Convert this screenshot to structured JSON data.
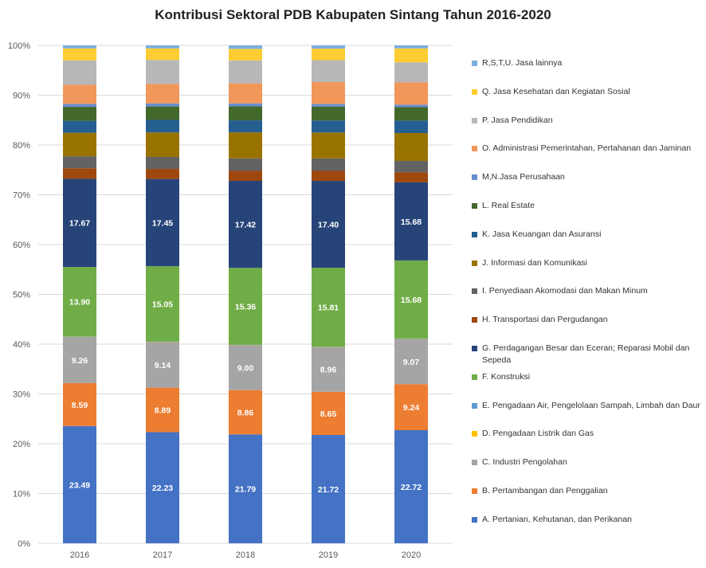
{
  "chart_data": {
    "type": "bar",
    "stacked": true,
    "percent_stacked": true,
    "title": "Kontribusi Sektoral PDB Kabupaten Sintang Tahun 2016-2020",
    "categories": [
      "2016",
      "2017",
      "2018",
      "2019",
      "2020"
    ],
    "y_ticks": [
      "0%",
      "10%",
      "20%",
      "30%",
      "40%",
      "50%",
      "60%",
      "70%",
      "80%",
      "90%",
      "100%"
    ],
    "ylim": [
      0,
      100
    ],
    "grid": true,
    "legend_position": "right",
    "series": [
      {
        "name": "A. Pertanian, Kehutanan, dan Perikanan",
        "color": "#4472C4",
        "values": [
          23.49,
          22.23,
          21.79,
          21.72,
          22.72
        ],
        "labels": [
          "23.49",
          "22.23",
          "21.79",
          "21.72",
          "22.72"
        ]
      },
      {
        "name": "B. Pertambangan dan Penggalian",
        "color": "#ED7D31",
        "values": [
          8.59,
          8.89,
          8.86,
          8.65,
          9.24
        ],
        "labels": [
          "8.59",
          "8.89",
          "8.86",
          "8.65",
          "9.24"
        ]
      },
      {
        "name": "C. Industri Pengolahan",
        "color": "#A5A5A5",
        "values": [
          9.26,
          9.14,
          9.0,
          8.96,
          9.07
        ],
        "labels": [
          "9.26",
          "9.14",
          "9.00",
          "8.96",
          "9.07"
        ]
      },
      {
        "name": "D. Pengadaan Listrik dan Gas",
        "color": "#FFC000",
        "values": [
          0.05,
          0.05,
          0.05,
          0.05,
          0.05
        ]
      },
      {
        "name": "E. Pengadaan Air, Pengelolaan Sampah, Limbah dan Daur",
        "color": "#5B9BD5",
        "values": [
          0.05,
          0.05,
          0.05,
          0.05,
          0.05
        ]
      },
      {
        "name": "F. Konstruksi",
        "color": "#70AD47",
        "values": [
          13.9,
          15.05,
          15.36,
          15.81,
          15.68
        ],
        "labels": [
          "13.90",
          "15.05",
          "15.36",
          "15.81",
          "15.68"
        ]
      },
      {
        "name": "G. Perdagangan Besar dan Eceran; Reparasi Mobil dan Sepeda",
        "color": "#264478",
        "values": [
          17.67,
          17.45,
          17.42,
          17.4,
          15.68
        ],
        "labels": [
          "17.67",
          "17.45",
          "17.42",
          "17.40",
          "15.68"
        ]
      },
      {
        "name": "H. Transportasi dan Pergudangan",
        "color": "#9E480E",
        "values": [
          2.1,
          2.0,
          2.0,
          2.0,
          2.0
        ]
      },
      {
        "name": "I. Penyediaan Akomodasi dan Makan Minum",
        "color": "#636363",
        "values": [
          2.4,
          2.4,
          2.5,
          2.5,
          2.3
        ]
      },
      {
        "name": "J. Informasi dan Komunikasi",
        "color": "#997300",
        "values": [
          4.7,
          4.9,
          5.2,
          5.2,
          5.6
        ]
      },
      {
        "name": "K. Jasa Keuangan dan Asuransi",
        "color": "#255E91",
        "values": [
          2.4,
          2.5,
          2.4,
          2.4,
          2.5
        ]
      },
      {
        "name": "L. Real Estate",
        "color": "#43682B",
        "values": [
          2.8,
          2.7,
          2.8,
          2.8,
          2.7
        ]
      },
      {
        "name": "M,N.Jasa Perusahaan",
        "color": "#698ED0",
        "values": [
          0.6,
          0.6,
          0.6,
          0.5,
          0.5
        ]
      },
      {
        "name": "O. Administrasi Pemerintahan, Pertahanan dan Jaminan",
        "color": "#F1975A",
        "values": [
          3.8,
          3.9,
          4.0,
          4.4,
          4.5
        ]
      },
      {
        "name": "P. Jasa Pendidikan",
        "color": "#B7B7B7",
        "values": [
          4.9,
          4.8,
          4.6,
          4.4,
          4.0
        ]
      },
      {
        "name": "Q. Jasa Kesehatan dan Kegiatan Sosial",
        "color": "#FFCD33",
        "values": [
          2.4,
          2.3,
          2.3,
          2.3,
          2.8
        ]
      },
      {
        "name": "R,S,T,U. Jasa lainnya",
        "color": "#7CAFDD",
        "values": [
          0.6,
          0.6,
          0.7,
          0.65,
          0.6
        ]
      }
    ]
  }
}
